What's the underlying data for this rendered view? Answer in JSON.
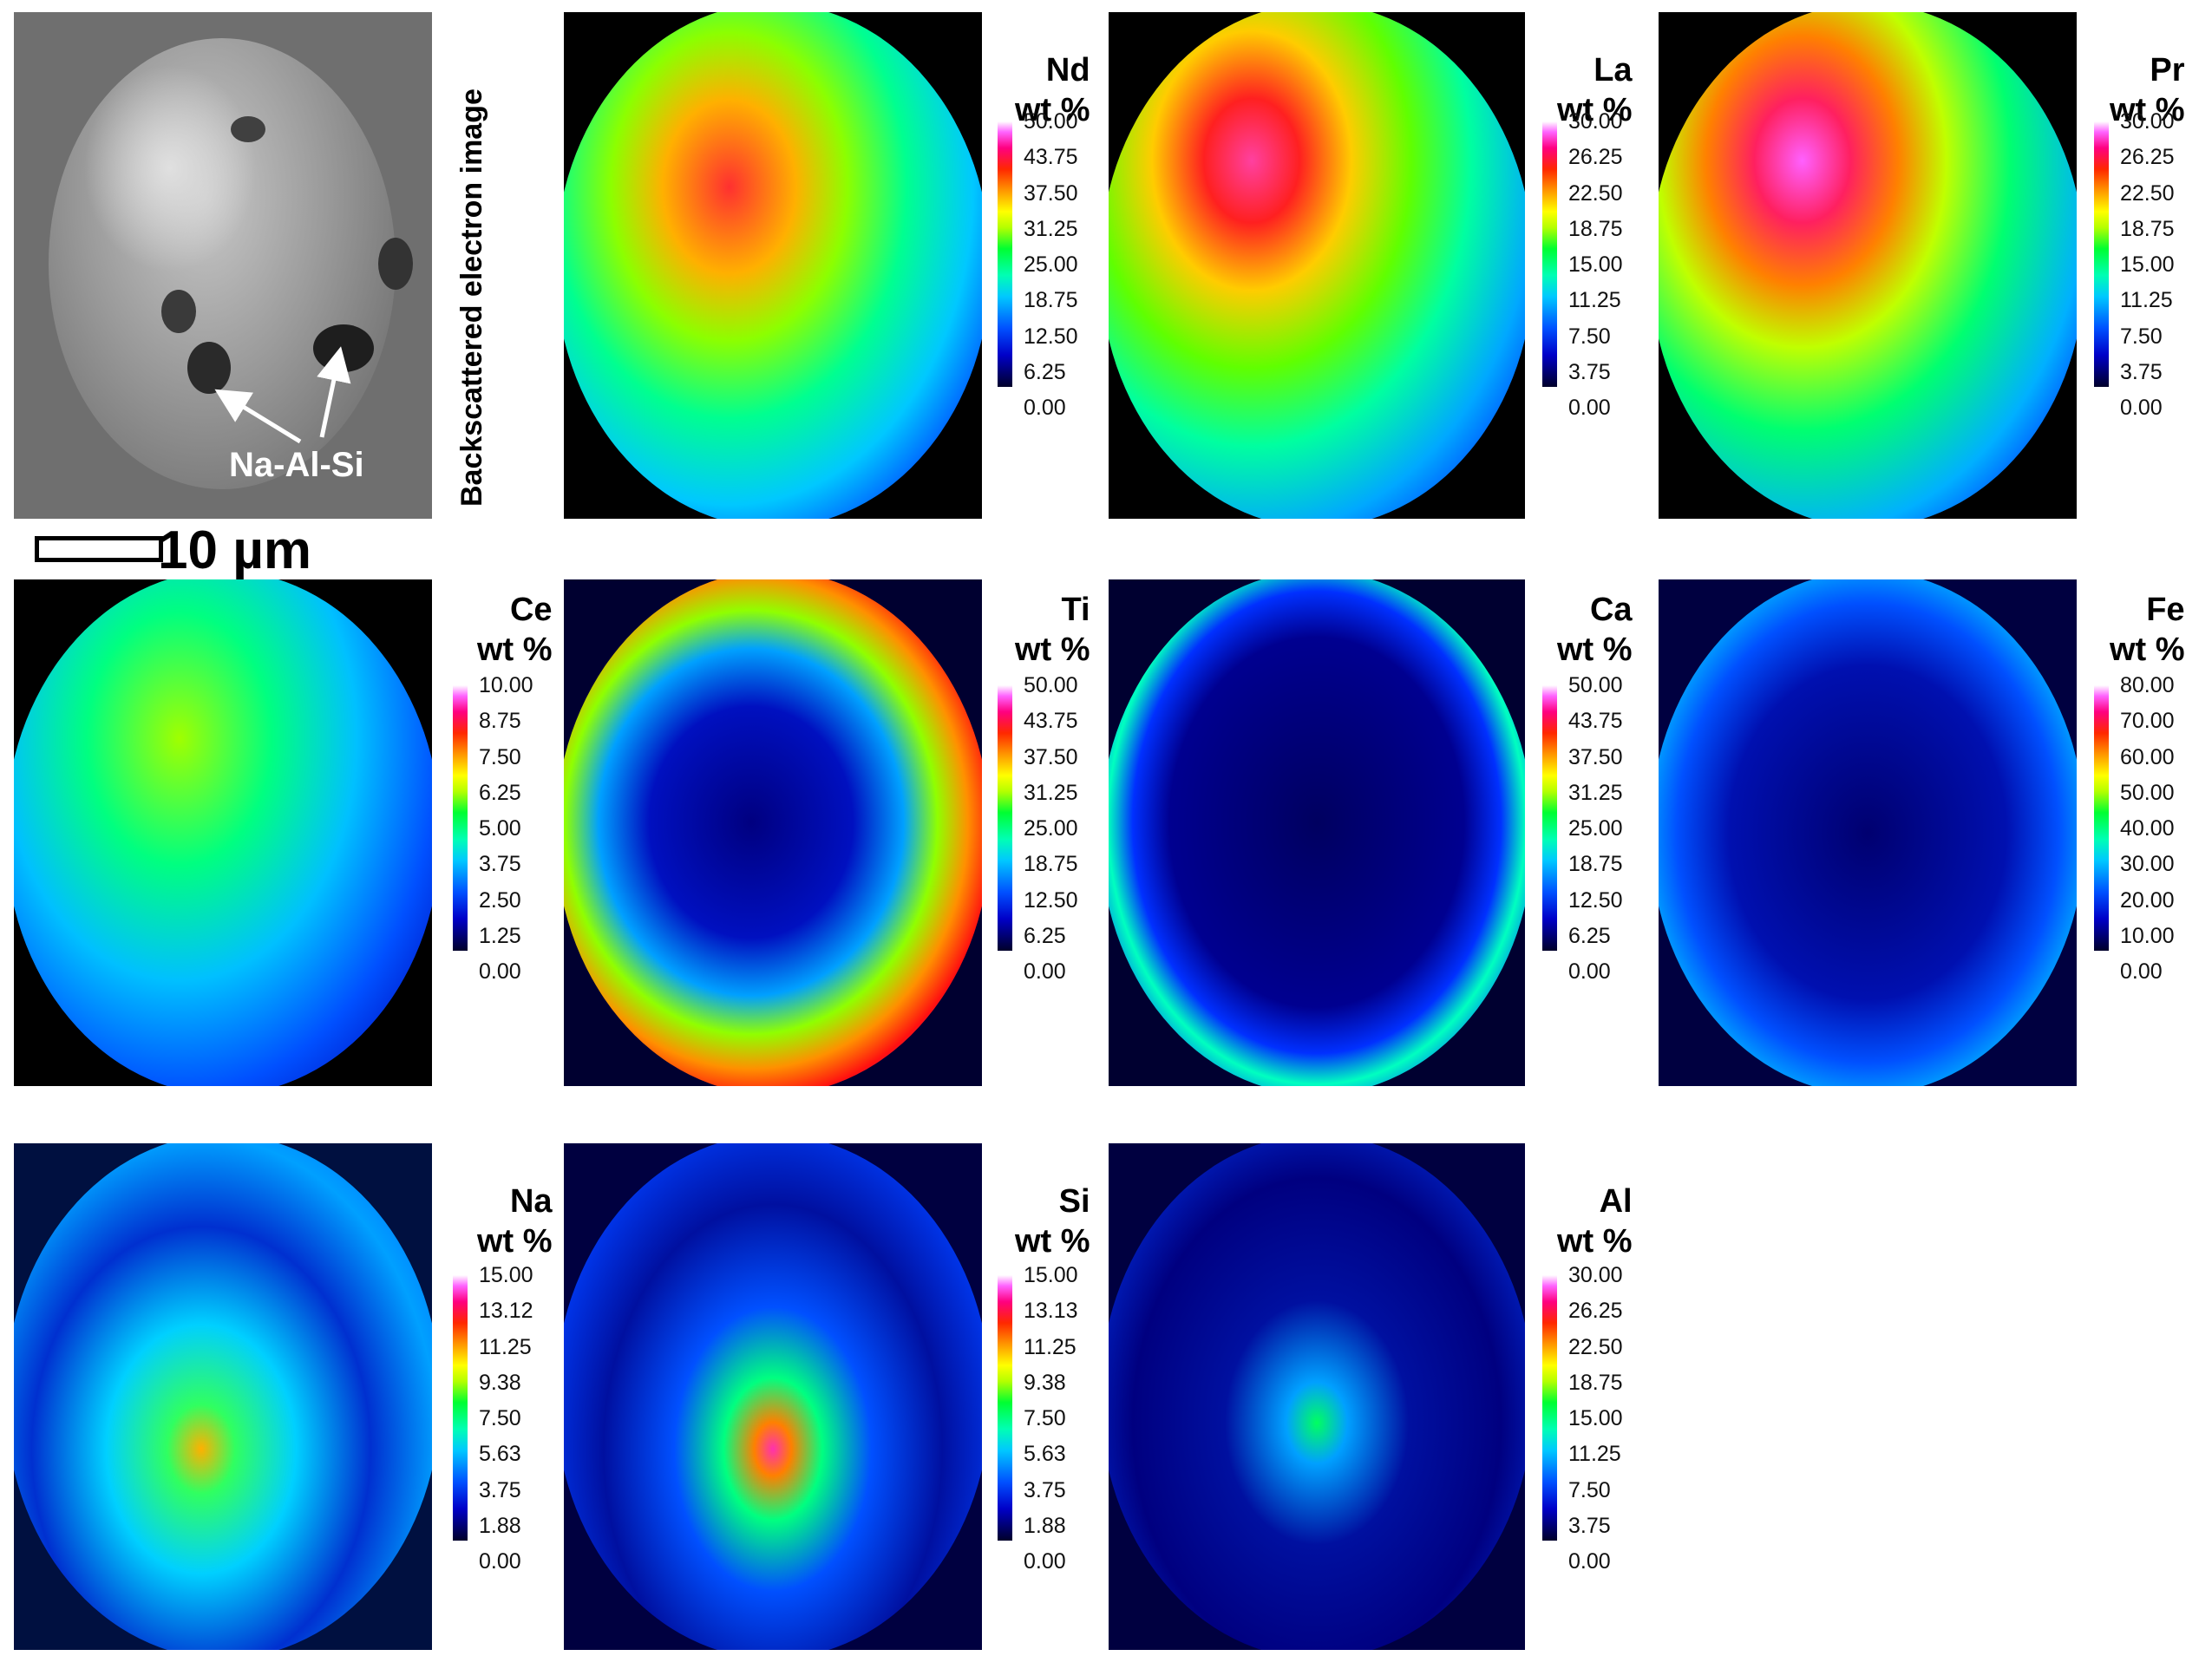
{
  "bse": {
    "label": "Backscattered electron image",
    "arrow_label": "Na-Al-Si",
    "scale_label": "10 µm"
  },
  "chart_data": [
    {
      "type": "heatmap",
      "element": "Nd",
      "title": "Nd",
      "unit": "wt %",
      "ticks": [
        "50.00",
        "43.75",
        "37.50",
        "31.25",
        "25.00",
        "18.75",
        "12.50",
        "6.25",
        "0.00"
      ],
      "range": [
        0,
        50
      ]
    },
    {
      "type": "heatmap",
      "element": "La",
      "title": "La",
      "unit": "wt %",
      "ticks": [
        "30.00",
        "26.25",
        "22.50",
        "18.75",
        "15.00",
        "11.25",
        "7.50",
        "3.75",
        "0.00"
      ],
      "range": [
        0,
        30
      ]
    },
    {
      "type": "heatmap",
      "element": "Pr",
      "title": "Pr",
      "unit": "wt %",
      "ticks": [
        "30.00",
        "26.25",
        "22.50",
        "18.75",
        "15.00",
        "11.25",
        "7.50",
        "3.75",
        "0.00"
      ],
      "range": [
        0,
        30
      ]
    },
    {
      "type": "heatmap",
      "element": "Ce",
      "title": "Ce",
      "unit": "wt %",
      "ticks": [
        "10.00",
        "8.75",
        "7.50",
        "6.25",
        "5.00",
        "3.75",
        "2.50",
        "1.25",
        "0.00"
      ],
      "range": [
        0,
        10
      ]
    },
    {
      "type": "heatmap",
      "element": "Ti",
      "title": "Ti",
      "unit": "wt %",
      "ticks": [
        "50.00",
        "43.75",
        "37.50",
        "31.25",
        "25.00",
        "18.75",
        "12.50",
        "6.25",
        "0.00"
      ],
      "range": [
        0,
        50
      ]
    },
    {
      "type": "heatmap",
      "element": "Ca",
      "title": "Ca",
      "unit": "wt %",
      "ticks": [
        "50.00",
        "43.75",
        "37.50",
        "31.25",
        "25.00",
        "18.75",
        "12.50",
        "6.25",
        "0.00"
      ],
      "range": [
        0,
        50
      ]
    },
    {
      "type": "heatmap",
      "element": "Fe",
      "title": "Fe",
      "unit": "wt %",
      "ticks": [
        "80.00",
        "70.00",
        "60.00",
        "50.00",
        "40.00",
        "30.00",
        "20.00",
        "10.00",
        "0.00"
      ],
      "range": [
        0,
        80
      ]
    },
    {
      "type": "heatmap",
      "element": "Na",
      "title": "Na",
      "unit": "wt %",
      "ticks": [
        "15.00",
        "13.12",
        "11.25",
        "9.38",
        "7.50",
        "5.63",
        "3.75",
        "1.88",
        "0.00"
      ],
      "range": [
        0,
        15
      ]
    },
    {
      "type": "heatmap",
      "element": "Si",
      "title": "Si",
      "unit": "wt %",
      "ticks": [
        "15.00",
        "13.13",
        "11.25",
        "9.38",
        "7.50",
        "5.63",
        "3.75",
        "1.88",
        "0.00"
      ],
      "range": [
        0,
        15
      ]
    },
    {
      "type": "heatmap",
      "element": "Al",
      "title": "Al",
      "unit": "wt %",
      "ticks": [
        "30.00",
        "26.25",
        "22.50",
        "18.75",
        "15.00",
        "11.25",
        "7.50",
        "3.75",
        "0.00"
      ],
      "range": [
        0,
        30
      ]
    }
  ]
}
